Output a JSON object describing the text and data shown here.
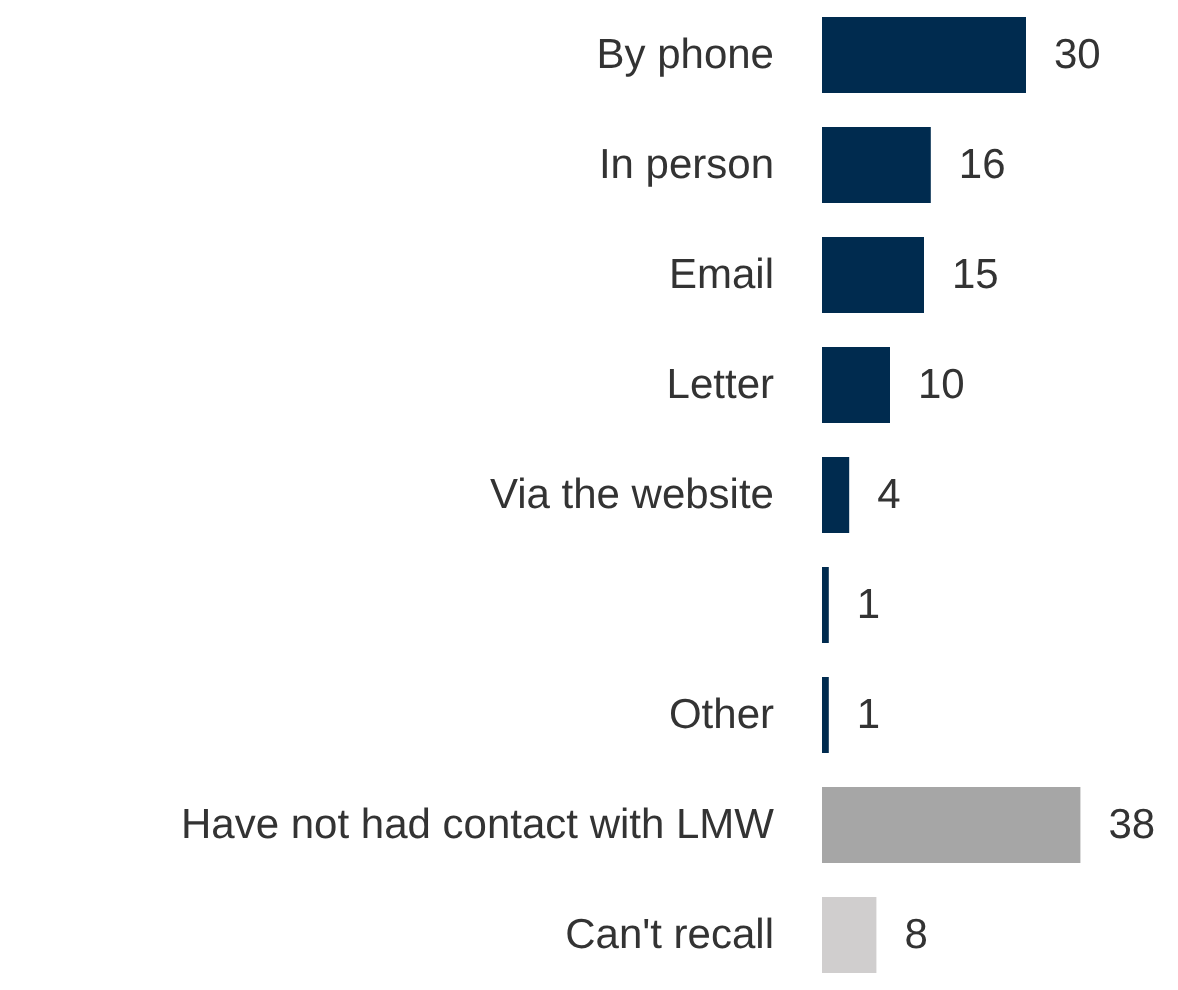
{
  "chart_data": {
    "type": "bar",
    "orientation": "horizontal",
    "data_labels": true,
    "categories": [
      "By phone",
      "In person",
      "Email",
      "Letter",
      "Via the website",
      null,
      "Other",
      "Have not had contact with LMW",
      "Can't recall"
    ],
    "values": [
      30,
      16,
      15,
      10,
      4,
      1,
      1,
      38,
      8
    ],
    "colors": [
      "#002b4f",
      "#002b4f",
      "#002b4f",
      "#002b4f",
      "#002b4f",
      "#002b4f",
      "#002b4f",
      "#a6a6a6",
      "#d0cece"
    ]
  }
}
